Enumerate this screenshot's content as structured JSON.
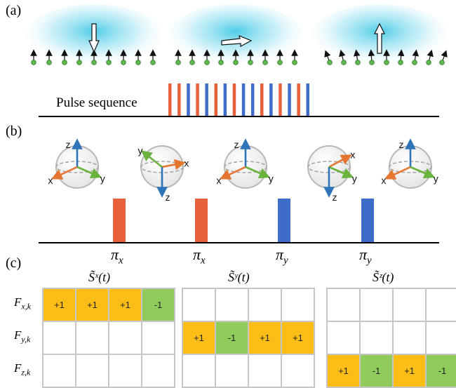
{
  "panels": {
    "a": "(a)",
    "b": "(b)",
    "c": "(c)"
  },
  "pulse_sequence_label": "Pulse sequence",
  "pulse_sequence": [
    "red",
    "red",
    "blue",
    "red",
    "blue",
    "red",
    "blue",
    "red",
    "blue",
    "blue",
    "red",
    "blue",
    "red",
    "blue",
    "red",
    "blue"
  ],
  "spin_panels": [
    {
      "direction": "down"
    },
    {
      "direction": "right"
    },
    {
      "direction": "up"
    }
  ],
  "bloch_frames": [
    {
      "axes": [
        "z",
        "x",
        "y"
      ]
    },
    {
      "axes": [
        "y",
        "x",
        "z"
      ]
    },
    {
      "axes": [
        "z",
        "x",
        "y"
      ]
    },
    {
      "axes": [
        "x",
        "y",
        "z"
      ]
    },
    {
      "axes": [
        "z",
        "x",
        "y"
      ]
    }
  ],
  "pulses": [
    {
      "base": "π",
      "sub": "x",
      "color": "#e8613a"
    },
    {
      "base": "π",
      "sub": "x",
      "color": "#e8613a"
    },
    {
      "base": "π",
      "sub": "y",
      "color": "#3d6dc9"
    },
    {
      "base": "π",
      "sub": "y",
      "color": "#3d6dc9"
    }
  ],
  "colors": {
    "red_pulse": "#e8613a",
    "blue_pulse": "#3d6dc9",
    "positive_cell": "#fcbd16",
    "negative_cell": "#8fcc5c",
    "spin_dot": "#5fb84a",
    "glow": "#6fd6ec"
  },
  "tables": {
    "row_labels": [
      {
        "base": "F",
        "sub": "x,k"
      },
      {
        "base": "F",
        "sub": "y,k"
      },
      {
        "base": "F",
        "sub": "z,k"
      }
    ],
    "items": [
      {
        "title": "S̃ˣ(t)",
        "rows": [
          [
            "+1",
            "+1",
            "+1",
            "-1"
          ],
          [
            "",
            "",
            "",
            ""
          ],
          [
            "",
            "",
            "",
            ""
          ]
        ]
      },
      {
        "title": "S̃ʸ(t)",
        "rows": [
          [
            "",
            "",
            "",
            ""
          ],
          [
            "+1",
            "-1",
            "+1",
            "+1"
          ],
          [
            "",
            "",
            "",
            ""
          ]
        ]
      },
      {
        "title": "S̃ᶻ(t)",
        "rows": [
          [
            "",
            "",
            "",
            ""
          ],
          [
            "",
            "",
            "",
            ""
          ],
          [
            "+1",
            "-1",
            "+1",
            "-1"
          ]
        ]
      }
    ]
  }
}
